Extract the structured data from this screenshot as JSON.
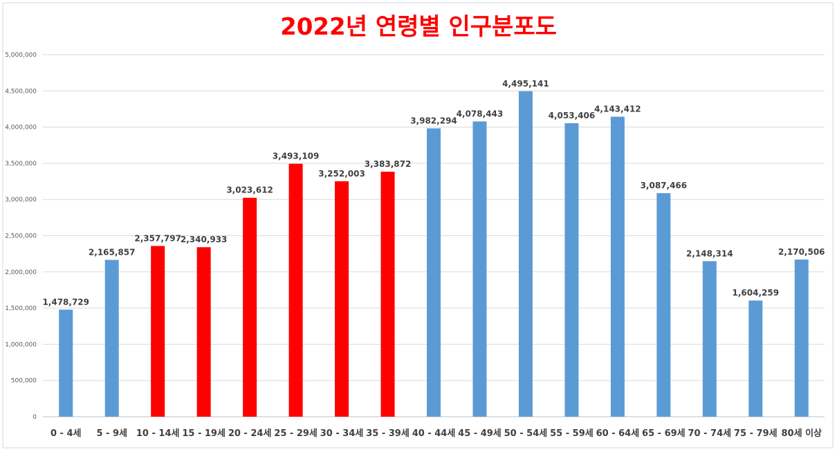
{
  "chart_data": {
    "type": "bar",
    "title": "2022년 연령별 인구분포도",
    "xlabel": "",
    "ylabel": "",
    "ylim": [
      0,
      5000000
    ],
    "yticks": [
      0,
      500000,
      1000000,
      1500000,
      2000000,
      2500000,
      3000000,
      3500000,
      4000000,
      4500000,
      5000000
    ],
    "ytick_labels": [
      "0",
      "500,000",
      "1,000,000",
      "1,500,000",
      "2,000,000",
      "2,500,000",
      "3,000,000",
      "3,500,000",
      "4,000,000",
      "4,500,000",
      "5,000,000"
    ],
    "grid": true,
    "legend": "none",
    "categories": [
      "0 - 4세",
      "5 - 9세",
      "10 - 14세",
      "15 - 19세",
      "20 - 24세",
      "25 - 29세",
      "30 - 34세",
      "35 - 39세",
      "40 - 44세",
      "45 - 49세",
      "50 - 54세",
      "55 - 59세",
      "60 - 64세",
      "65 - 69세",
      "70 - 74세",
      "75 - 79세",
      "80세 이상"
    ],
    "values": [
      1478729,
      2165857,
      2357797,
      2340933,
      3023612,
      3493109,
      3252003,
      3383872,
      3982294,
      4078443,
      4495141,
      4053406,
      4143412,
      3087466,
      2148314,
      1604259,
      2170506
    ],
    "value_labels": [
      "1,478,729",
      "2,165,857",
      "2,357,797",
      "2,340,933",
      "3,023,612",
      "3,493,109",
      "3,252,003",
      "3,383,872",
      "3,982,294",
      "4,078,443",
      "4,495,141",
      "4,053,406",
      "4,143,412",
      "3,087,466",
      "2,148,314",
      "1,604,259",
      "2,170,506"
    ],
    "bar_colors": [
      "#5b9bd5",
      "#5b9bd5",
      "#ff0000",
      "#ff0000",
      "#ff0000",
      "#ff0000",
      "#ff0000",
      "#ff0000",
      "#5b9bd5",
      "#5b9bd5",
      "#5b9bd5",
      "#5b9bd5",
      "#5b9bd5",
      "#5b9bd5",
      "#5b9bd5",
      "#5b9bd5",
      "#5b9bd5"
    ]
  },
  "colors": {
    "blue_bar": "#5b9bd5",
    "red_bar": "#ff0000",
    "title": "#ff0000",
    "grid": "#d9d9d9"
  }
}
